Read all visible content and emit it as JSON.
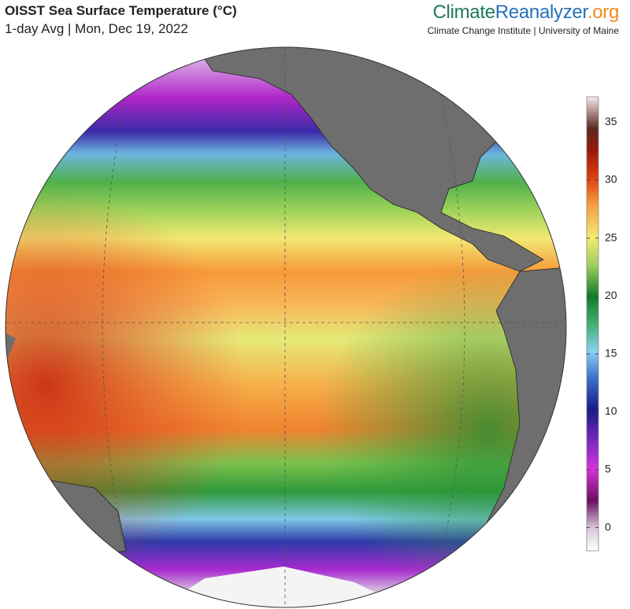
{
  "header": {
    "title": "OISST Sea Surface Temperature (°C)",
    "subtitle": "1-day Avg | Mon, Dec 19, 2022",
    "brand": [
      "Climate",
      "Reanalyzer",
      ".org"
    ],
    "affiliation": "Climate Change Institute | University of Maine"
  },
  "colorbar": {
    "lim": [
      -2,
      37.2
    ],
    "ticks": [
      0,
      5,
      10,
      15,
      20,
      25,
      30,
      35
    ]
  }
}
